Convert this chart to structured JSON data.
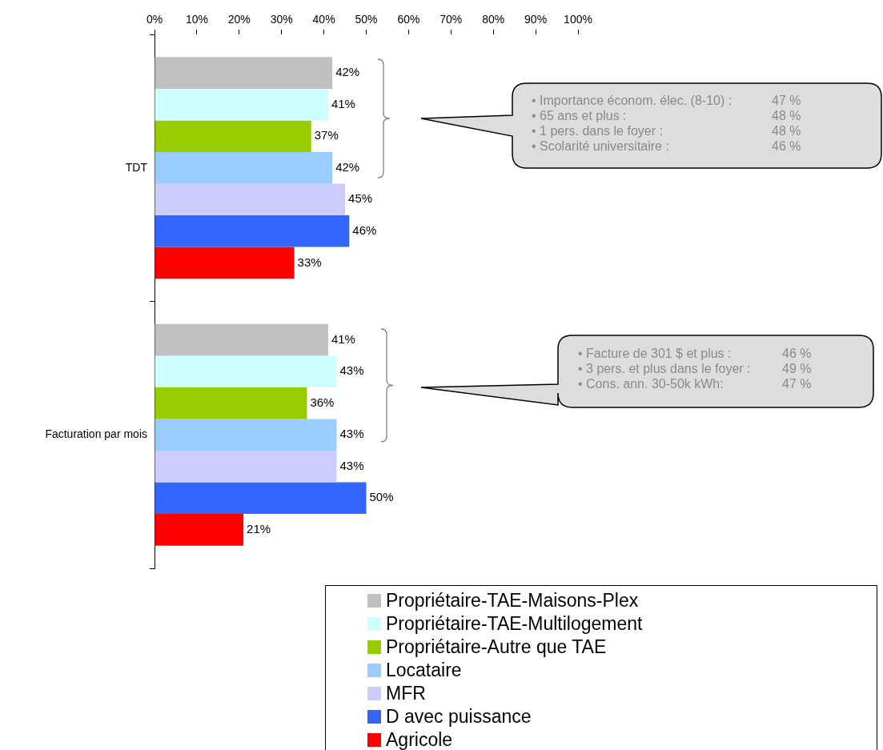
{
  "chart_data": {
    "type": "bar",
    "orientation": "horizontal",
    "categories": [
      "TDT",
      "Facturation par mois"
    ],
    "series": [
      {
        "name": "Propriétaire-TAE-Maisons-Plex",
        "color": "#c0c0c0",
        "values": [
          42,
          41
        ],
        "value_labels": [
          "42%",
          "41%"
        ]
      },
      {
        "name": "Propriétaire-TAE-Multilogement",
        "color": "#ccffff",
        "values": [
          41,
          43
        ],
        "value_labels": [
          "41%",
          "43%"
        ]
      },
      {
        "name": "Propriétaire-Autre que TAE",
        "color": "#99cc00",
        "values": [
          37,
          36
        ],
        "value_labels": [
          "37%",
          "36%"
        ]
      },
      {
        "name": "Locataire",
        "color": "#99ccff",
        "values": [
          42,
          43
        ],
        "value_labels": [
          "42%",
          "43%"
        ]
      },
      {
        "name": "MFR",
        "color": "#ccccff",
        "values": [
          45,
          43
        ],
        "value_labels": [
          "45%",
          "43%"
        ]
      },
      {
        "name": "D avec puissance",
        "color": "#3366ff",
        "values": [
          46,
          50
        ],
        "value_labels": [
          "46%",
          "50%"
        ]
      },
      {
        "name": "Agricole",
        "color": "#ff0000",
        "values": [
          33,
          21
        ],
        "value_labels": [
          "33%",
          "21%"
        ]
      }
    ],
    "xlim": [
      0,
      100
    ],
    "xticks": [
      {
        "value": 0,
        "label": "0%"
      },
      {
        "value": 10,
        "label": "10%"
      },
      {
        "value": 20,
        "label": "20%"
      },
      {
        "value": 30,
        "label": "30%"
      },
      {
        "value": 40,
        "label": "40%"
      },
      {
        "value": 50,
        "label": "50%"
      },
      {
        "value": 60,
        "label": "60%"
      },
      {
        "value": 70,
        "label": "70%"
      },
      {
        "value": 80,
        "label": "80%"
      },
      {
        "value": 90,
        "label": "90%"
      },
      {
        "value": 100,
        "label": "100%"
      }
    ],
    "grid": false,
    "legend": "bottom",
    "annotations": [
      "• Importance économ. élec. (8-10) :\t47 %\n• 65 ans et plus :\t48 %\n• 1 pers. dans le foyer :\t48 %\n• Scolarité universitaire :\t46 %",
      "• Facture de 301 $ et plus :\t46 %\n• 3 pers. et plus dans le foyer :\t49 %\n• Cons. ann. 30-50k kWh:\t47 %"
    ]
  }
}
